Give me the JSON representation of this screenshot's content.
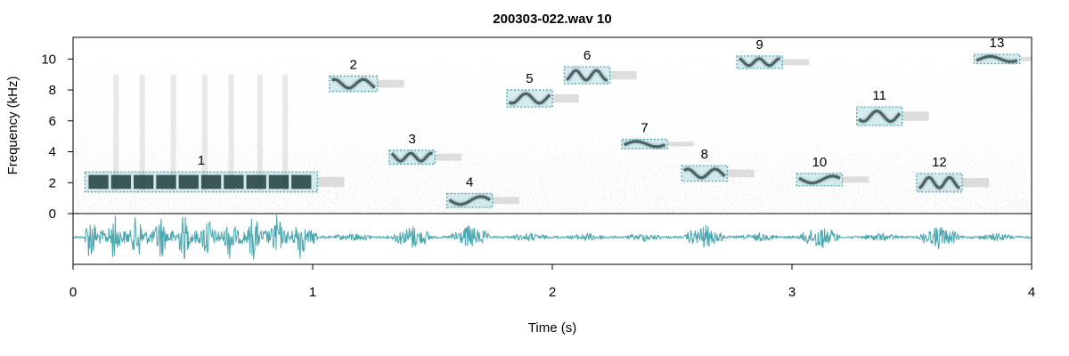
{
  "chart_data": {
    "type": "spectrogram",
    "title": "200303-022.wav 10",
    "xlabel": "Time (s)",
    "ylabel": "Frequency (kHz)",
    "xlim": [
      0,
      4
    ],
    "ylim": [
      0,
      11.4
    ],
    "x_ticks": [
      "0",
      "1",
      "2",
      "3",
      "4"
    ],
    "y_ticks": [
      "0",
      "2",
      "4",
      "6",
      "8",
      "10"
    ],
    "grid": false,
    "accent_color": "#4aa7b0",
    "detections": [
      {
        "label": "1",
        "t_start": 0.05,
        "t_end": 1.02,
        "f_low": 1.4,
        "f_high": 2.7
      },
      {
        "label": "2",
        "t_start": 1.07,
        "t_end": 1.27,
        "f_low": 7.9,
        "f_high": 8.9
      },
      {
        "label": "3",
        "t_start": 1.32,
        "t_end": 1.51,
        "f_low": 3.2,
        "f_high": 4.1
      },
      {
        "label": "4",
        "t_start": 1.56,
        "t_end": 1.75,
        "f_low": 0.4,
        "f_high": 1.3
      },
      {
        "label": "5",
        "t_start": 1.81,
        "t_end": 2.0,
        "f_low": 6.9,
        "f_high": 8.0
      },
      {
        "label": "6",
        "t_start": 2.05,
        "t_end": 2.24,
        "f_low": 8.4,
        "f_high": 9.5
      },
      {
        "label": "7",
        "t_start": 2.29,
        "t_end": 2.48,
        "f_low": 4.2,
        "f_high": 4.8
      },
      {
        "label": "8",
        "t_start": 2.54,
        "t_end": 2.73,
        "f_low": 2.1,
        "f_high": 3.1
      },
      {
        "label": "9",
        "t_start": 2.77,
        "t_end": 2.96,
        "f_low": 9.4,
        "f_high": 10.2
      },
      {
        "label": "10",
        "t_start": 3.02,
        "t_end": 3.21,
        "f_low": 1.8,
        "f_high": 2.6
      },
      {
        "label": "11",
        "t_start": 3.27,
        "t_end": 3.46,
        "f_low": 5.7,
        "f_high": 6.9
      },
      {
        "label": "12",
        "t_start": 3.52,
        "t_end": 3.71,
        "f_low": 1.4,
        "f_high": 2.6
      },
      {
        "label": "13",
        "t_start": 3.76,
        "t_end": 3.95,
        "f_low": 9.7,
        "f_high": 10.3
      }
    ]
  }
}
